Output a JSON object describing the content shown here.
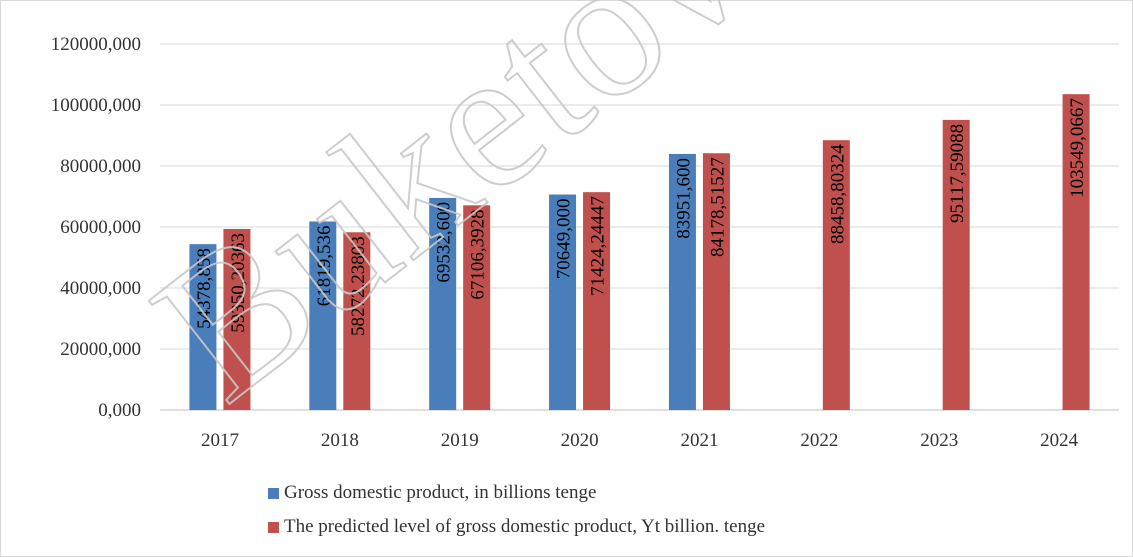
{
  "chart_data": {
    "type": "bar",
    "categories": [
      "2017",
      "2018",
      "2019",
      "2020",
      "2021",
      "2022",
      "2023",
      "2024"
    ],
    "series": [
      {
        "name": "Gross domestic product, in billions tenge",
        "color": "#4a7ebb",
        "values": [
          54378.858,
          61819.536,
          69532.6,
          70649.0,
          83951.6,
          null,
          null,
          null
        ],
        "labels": [
          "54378,858",
          "61819,536",
          "69532,600",
          "70649,000",
          "83951,600",
          "",
          "",
          ""
        ]
      },
      {
        "name": "The predicted level of gross domestic product, Yt billion. tenge",
        "color": "#c0504d",
        "values": [
          59350.20363,
          58272.23803,
          67106.3928,
          71424.24447,
          84178.51527,
          88458.80324,
          95117.59088,
          103549.0667
        ],
        "labels": [
          "59350,20363",
          "58272,23803",
          "67106,3928",
          "71424,24447",
          "84178,51527",
          "88458,80324",
          "95117,59088",
          "103549,0667"
        ]
      }
    ],
    "y_ticks": [
      0,
      20000,
      40000,
      60000,
      80000,
      100000,
      120000
    ],
    "y_tick_labels": [
      "0,000",
      "20000,000",
      "40000,000",
      "60000,000",
      "80000,000",
      "100000,000",
      "120000,000"
    ],
    "ylim": [
      0,
      120000
    ],
    "grid": true,
    "legend_position": "bottom"
  },
  "watermark": {
    "text": "Buketov",
    "color": "#c8c8c8"
  }
}
